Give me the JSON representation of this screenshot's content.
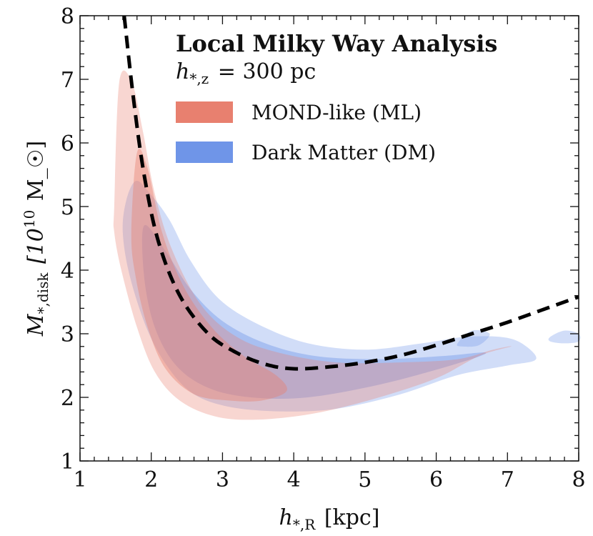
{
  "chart_data": {
    "type": "area",
    "xlabel": "h_{*,R} [kpc]",
    "ylabel": "M_{*,disk} [10^{10} M_☉]",
    "xlim": [
      1,
      8
    ],
    "ylim": [
      1,
      8
    ],
    "x_ticks": [
      "1",
      "2",
      "3",
      "4",
      "5",
      "6",
      "7",
      "8"
    ],
    "y_ticks": [
      "1",
      "2",
      "3",
      "4",
      "5",
      "6",
      "7",
      "8"
    ],
    "grid": false,
    "legend": {
      "placement": "top-right",
      "title": "Local Milky Way Analysis",
      "subtitle": "h_{*,z} = 300 pc",
      "entries": [
        {
          "name": "MOND-like (ML)",
          "color": "#e8806f"
        },
        {
          "name": "Dark Matter (DM)",
          "color": "#6f95e8"
        }
      ]
    },
    "series": [
      {
        "name": "Dark Matter (DM)",
        "kind": "contour",
        "color": "#6f95e8",
        "regions": [
          {
            "level": "outer",
            "x": [
              1.65,
              1.78,
              1.95,
              2.25,
              2.55,
              2.95,
              3.5,
              4.2,
              5.0,
              5.8,
              6.4,
              6.9,
              7.2,
              7.4,
              7.0,
              6.3,
              5.5,
              4.6,
              3.8,
              3.1,
              2.6,
              2.25,
              1.95,
              1.7,
              1.6
            ],
            "y": [
              5.1,
              5.4,
              5.25,
              4.8,
              4.15,
              3.55,
              3.15,
              2.85,
              2.75,
              2.85,
              2.95,
              2.95,
              2.85,
              2.6,
              2.5,
              2.35,
              2.05,
              1.82,
              1.78,
              1.85,
              2.05,
              2.45,
              3.05,
              3.9,
              4.6
            ]
          },
          {
            "level": "inner",
            "x": [
              1.9,
              2.2,
              2.55,
              3.0,
              3.6,
              4.3,
              5.2,
              6.1,
              6.7,
              6.2,
              5.2,
              4.2,
              3.4,
              2.8,
              2.35,
              2.05,
              1.9
            ],
            "y": [
              4.7,
              4.3,
              3.7,
              3.2,
              2.85,
              2.65,
              2.6,
              2.65,
              2.7,
              2.5,
              2.2,
              2.0,
              2.0,
              2.15,
              2.5,
              3.1,
              3.9
            ]
          },
          {
            "level": "island",
            "x": [
              7.6,
              7.8,
              8.0,
              8.0,
              7.8,
              7.6
            ],
            "y": [
              2.95,
              3.05,
              3.0,
              2.88,
              2.85,
              2.88
            ]
          },
          {
            "level": "island",
            "x": [
              6.3,
              6.5,
              6.75,
              6.6,
              6.35
            ],
            "y": [
              2.85,
              3.05,
              3.0,
              2.82,
              2.8
            ]
          }
        ]
      },
      {
        "name": "MOND-like (ML)",
        "kind": "contour",
        "color": "#e8806f",
        "regions": [
          {
            "level": "outer",
            "x": [
              1.48,
              1.55,
              1.72,
              1.88,
              2.05,
              2.3,
              2.7,
              3.2,
              3.8,
              4.6,
              5.5,
              6.3,
              6.8,
              7.05,
              6.6,
              6.0,
              5.2,
              4.3,
              3.5,
              2.9,
              2.4,
              2.05,
              1.8,
              1.58,
              1.48
            ],
            "y": [
              5.0,
              6.95,
              6.98,
              6.2,
              5.2,
              4.3,
              3.45,
              2.95,
              2.7,
              2.55,
              2.55,
              2.6,
              2.75,
              2.8,
              2.65,
              2.3,
              2.0,
              1.75,
              1.65,
              1.7,
              1.95,
              2.4,
              3.1,
              4.0,
              4.6
            ]
          },
          {
            "level": "inner",
            "x": [
              1.72,
              1.8,
              1.95,
              2.15,
              2.45,
              2.85,
              3.3,
              3.75,
              3.9,
              3.55,
              3.1,
              2.6,
              2.2,
              1.95,
              1.78
            ],
            "y": [
              4.6,
              5.85,
              5.6,
              4.6,
              3.75,
              3.1,
              2.65,
              2.35,
              2.1,
              1.95,
              1.95,
              2.05,
              2.45,
              3.1,
              3.9
            ]
          }
        ]
      },
      {
        "name": "",
        "kind": "dashed-curve",
        "color": "#000000",
        "x": [
          1.62,
          1.75,
          1.9,
          2.1,
          2.4,
          2.8,
          3.2,
          3.6,
          4.0,
          4.5,
          5.0,
          5.5,
          6.0,
          6.5,
          7.0,
          7.5,
          8.0
        ],
        "y": [
          8.0,
          6.7,
          5.5,
          4.45,
          3.6,
          3.0,
          2.7,
          2.52,
          2.45,
          2.48,
          2.55,
          2.66,
          2.82,
          3.0,
          3.18,
          3.38,
          3.58
        ]
      }
    ]
  }
}
